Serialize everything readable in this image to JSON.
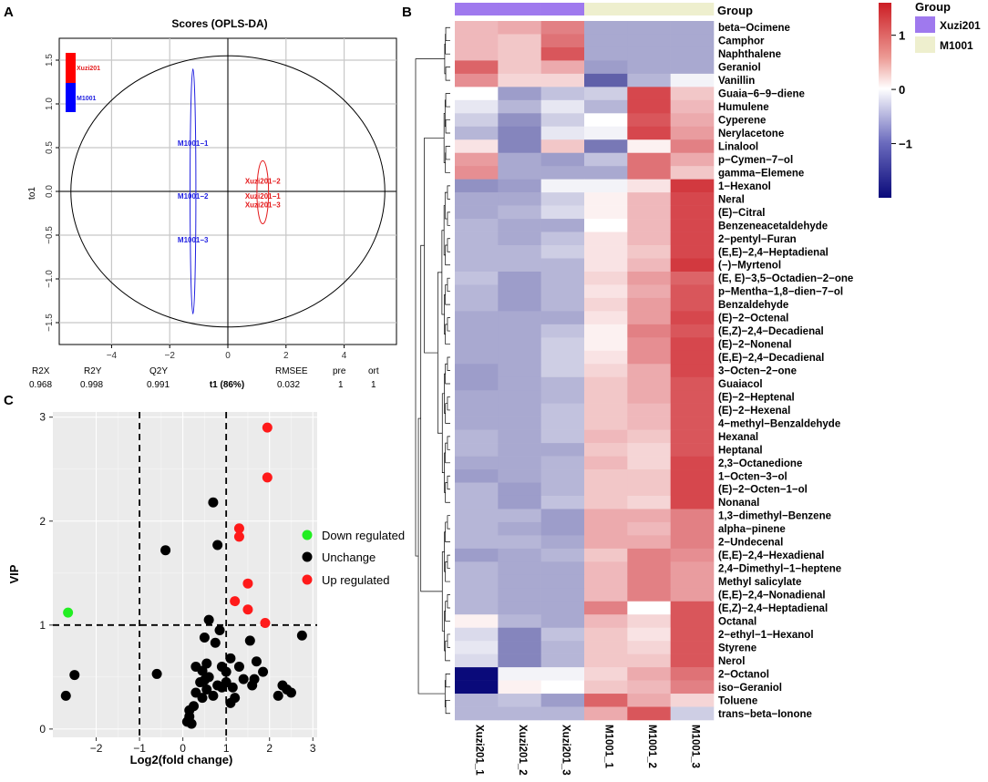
{
  "colors": {
    "xuzi": "#e41a1c",
    "m1001": "#1f1fe0",
    "down": "#22ee22",
    "unch": "#000000",
    "up": "#ff1a1a",
    "hm_low": "#0a0a7a",
    "hm_mid": "#ffffff",
    "hm_high": "#cc1d24",
    "group_xuzi": "#9f79ee",
    "group_m1001": "#eeefce"
  },
  "chart_data": [
    {
      "panel": "A",
      "type": "scatter",
      "title": "Scores (OPLS-DA)",
      "xlabel": "t1 (86%)",
      "ylabel": "to1",
      "xlim": [
        -5.8,
        5.8
      ],
      "ylim": [
        -1.75,
        1.75
      ],
      "xticks": [
        -4,
        -2,
        0,
        2,
        4
      ],
      "yticks": [
        -1.5,
        -1.0,
        -0.5,
        0.0,
        0.5,
        1.0,
        1.5
      ],
      "xtick_labels": [
        "−4",
        "−2",
        "0",
        "2",
        "4"
      ],
      "ytick_labels": [
        "−1.5",
        "−1.0",
        "−0.5",
        "0.0",
        "0.5",
        "1.0",
        "1.5"
      ],
      "points": [
        {
          "label": "M1001−1",
          "group": "M1001",
          "x": -1.2,
          "y": 0.55
        },
        {
          "label": "M1001−2",
          "group": "M1001",
          "x": -1.2,
          "y": -0.05
        },
        {
          "label": "M1001−3",
          "group": "M1001",
          "x": -1.2,
          "y": -0.55
        },
        {
          "label": "Xuzi201−2",
          "group": "Xuzi201",
          "x": 1.2,
          "y": 0.12
        },
        {
          "label": "Xuzi201−1",
          "group": "Xuzi201",
          "x": 1.2,
          "y": -0.05
        },
        {
          "label": "Xuzi201−3",
          "group": "Xuzi201",
          "x": 1.2,
          "y": -0.15
        }
      ],
      "ellipses": [
        {
          "group": "M1001",
          "cx": -1.2,
          "cy": 0.0,
          "rx": 0.1,
          "ry": 1.4
        },
        {
          "group": "Xuzi201",
          "cx": 1.2,
          "cy": -0.01,
          "rx": 0.2,
          "ry": 0.36
        },
        {
          "group": "all",
          "cx": 0.0,
          "cy": 0.0,
          "rx": 5.4,
          "ry": 1.55
        }
      ],
      "legend": [
        "Xuzi201",
        "M1001"
      ],
      "stats": {
        "headers": [
          "R2X",
          "R2Y",
          "Q2Y",
          "RMSEE",
          "pre",
          "ort"
        ],
        "values": [
          "0.968",
          "0.998",
          "0.991",
          "0.032",
          "1",
          "1"
        ]
      }
    },
    {
      "panel": "C",
      "type": "scatter",
      "xlabel": "Log2(fold change)",
      "ylabel": "VIP",
      "xlim": [
        -3,
        3.1
      ],
      "ylim": [
        -0.08,
        3.05
      ],
      "xticks": [
        -2,
        -1,
        0,
        1,
        2,
        3
      ],
      "yticks": [
        0,
        1,
        2,
        3
      ],
      "xtick_labels": [
        "−2",
        "−1",
        "0",
        "1",
        "2",
        "3"
      ],
      "ytick_labels": [
        "0",
        "1",
        "2",
        "3"
      ],
      "thresholds": {
        "x": [
          -1,
          1
        ],
        "y": [
          1
        ]
      },
      "legend": [
        "Down regulated",
        "Unchange",
        "Up regulated"
      ],
      "series": [
        {
          "name": "Down regulated",
          "points": [
            [
              -2.65,
              1.12
            ]
          ]
        },
        {
          "name": "Up regulated",
          "points": [
            [
              1.95,
              2.9
            ],
            [
              1.95,
              2.42
            ],
            [
              1.3,
              1.93
            ],
            [
              1.3,
              1.85
            ],
            [
              1.5,
              1.4
            ],
            [
              1.2,
              1.23
            ],
            [
              1.5,
              1.15
            ],
            [
              1.9,
              1.02
            ]
          ]
        },
        {
          "name": "Unchange",
          "points": [
            [
              -2.7,
              0.32
            ],
            [
              -2.5,
              0.52
            ],
            [
              -0.4,
              1.72
            ],
            [
              -0.6,
              0.53
            ],
            [
              0.7,
              2.18
            ],
            [
              0.8,
              1.77
            ],
            [
              0.6,
              1.05
            ],
            [
              0.85,
              0.95
            ],
            [
              0.75,
              0.83
            ],
            [
              0.55,
              0.63
            ],
            [
              0.45,
              0.56
            ],
            [
              0.6,
              0.5
            ],
            [
              0.5,
              0.47
            ],
            [
              0.4,
              0.45
            ],
            [
              0.8,
              0.42
            ],
            [
              0.3,
              0.35
            ],
            [
              0.55,
              0.38
            ],
            [
              0.7,
              0.32
            ],
            [
              0.9,
              0.4
            ],
            [
              1.0,
              0.45
            ],
            [
              0.45,
              0.3
            ],
            [
              0.25,
              0.22
            ],
            [
              0.15,
              0.18
            ],
            [
              0.15,
              0.12
            ],
            [
              0.1,
              0.07
            ],
            [
              0.2,
              0.05
            ],
            [
              0.9,
              0.6
            ],
            [
              1.0,
              0.55
            ],
            [
              1.1,
              0.68
            ],
            [
              1.3,
              0.6
            ],
            [
              1.4,
              0.48
            ],
            [
              1.15,
              0.4
            ],
            [
              1.55,
              0.85
            ],
            [
              1.7,
              0.65
            ],
            [
              1.65,
              0.48
            ],
            [
              1.85,
              0.55
            ],
            [
              1.1,
              0.25
            ],
            [
              1.2,
              0.3
            ],
            [
              1.6,
              0.42
            ],
            [
              2.3,
              0.42
            ],
            [
              2.4,
              0.38
            ],
            [
              2.5,
              0.35
            ],
            [
              2.2,
              0.32
            ],
            [
              2.75,
              0.9
            ],
            [
              0.5,
              0.88
            ],
            [
              0.3,
              0.6
            ]
          ]
        }
      ]
    },
    {
      "panel": "B",
      "type": "heatmap",
      "group_label": "Group",
      "columns": [
        "Xuzi201_1",
        "Xuzi201_2",
        "Xuzi201_3",
        "M1001_1",
        "M1001_2",
        "M1001_3"
      ],
      "column_groups": [
        "Xuzi201",
        "Xuzi201",
        "Xuzi201",
        "M1001",
        "M1001",
        "M1001"
      ],
      "rows": [
        "beta−Ocimene",
        "Camphor",
        "Naphthalene",
        "Geraniol",
        "Vanillin",
        "Guaia−6−9−diene",
        "Humulene",
        "Cyperene",
        "Nerylacetone",
        "Linalool",
        "p−Cymen−7−ol",
        "gamma−Elemene",
        "1−Hexanol",
        "Neral",
        "(E)−Citral",
        "Benzeneacetaldehyde",
        "2−pentyl−Furan",
        "(E,E)−2,4−Heptadienal",
        "(−)−Myrtenol",
        "(E, E)−3,5−Octadien−2−one",
        "p−Mentha−1,8−dien−7−ol",
        "Benzaldehyde",
        "(E)−2−Octenal",
        "(E,Z)−2,4−Decadienal",
        "(E)−2−Nonenal",
        "(E,E)−2,4−Decadienal",
        "3−Octen−2−one",
        "Guaiacol",
        "(E)−2−Heptenal",
        "(E)−2−Hexenal",
        "4−methyl−Benzaldehyde",
        "Hexanal",
        "Heptanal",
        "2,3−Octanedione",
        "1−Octen−3−ol",
        "(E)−2−Octen−1−ol",
        "Nonanal",
        "1,3−dimethyl−Benzene",
        "alpha−pinene",
        "2−Undecenal",
        "(E,E)−2,4−Hexadienal",
        "2,4−Dimethyl−1−heptene",
        "Methyl salicylate",
        "(E,E)−2,4−Nonadienal",
        "(E,Z)−2,4−Heptadienal",
        "Octanal",
        "2−ethyl−1−Hexanol",
        "Styrene",
        "Nerol",
        "2−Octanol",
        "iso−Geraniol",
        "Toluene",
        "trans−beta−Ionone"
      ],
      "values": [
        [
          0.5,
          0.6,
          0.9,
          -0.7,
          -0.7,
          -0.7
        ],
        [
          0.5,
          0.4,
          1.0,
          -0.7,
          -0.7,
          -0.7
        ],
        [
          0.5,
          0.4,
          1.2,
          -0.7,
          -0.7,
          -0.7
        ],
        [
          1.1,
          0.4,
          0.6,
          -0.8,
          -0.7,
          -0.7
        ],
        [
          0.8,
          0.3,
          0.3,
          -1.3,
          -0.6,
          -0.1
        ],
        [
          0.0,
          -0.8,
          -0.5,
          -0.4,
          1.3,
          0.4
        ],
        [
          -0.2,
          -0.6,
          -0.2,
          -0.6,
          1.3,
          0.5
        ],
        [
          -0.4,
          -0.9,
          -0.4,
          0.0,
          1.2,
          0.6
        ],
        [
          -0.6,
          -1.0,
          -0.2,
          -0.1,
          1.3,
          0.7
        ],
        [
          0.2,
          -1.0,
          0.4,
          -1.1,
          0.1,
          0.9
        ],
        [
          0.7,
          -0.7,
          -0.8,
          -0.5,
          1.0,
          0.6
        ],
        [
          0.8,
          -0.7,
          -0.7,
          -0.7,
          1.0,
          0.4
        ],
        [
          -0.9,
          -0.8,
          -0.1,
          -0.1,
          0.2,
          1.4
        ],
        [
          -0.7,
          -0.7,
          -0.4,
          0.1,
          0.5,
          1.3
        ],
        [
          -0.7,
          -0.6,
          -0.3,
          0.1,
          0.5,
          1.3
        ],
        [
          -0.6,
          -0.7,
          -0.7,
          0.0,
          0.5,
          1.3
        ],
        [
          -0.6,
          -0.7,
          -0.5,
          0.2,
          0.5,
          1.3
        ],
        [
          -0.6,
          -0.6,
          -0.4,
          0.2,
          0.4,
          1.3
        ],
        [
          -0.6,
          -0.6,
          -0.6,
          0.2,
          0.5,
          1.4
        ],
        [
          -0.5,
          -0.8,
          -0.6,
          0.3,
          0.7,
          1.1
        ],
        [
          -0.6,
          -0.8,
          -0.6,
          0.2,
          0.6,
          1.2
        ],
        [
          -0.6,
          -0.8,
          -0.6,
          0.3,
          0.7,
          1.2
        ],
        [
          -0.7,
          -0.7,
          -0.7,
          0.2,
          0.7,
          1.3
        ],
        [
          -0.7,
          -0.7,
          -0.5,
          0.1,
          0.9,
          1.2
        ],
        [
          -0.7,
          -0.7,
          -0.4,
          0.1,
          0.8,
          1.3
        ],
        [
          -0.7,
          -0.7,
          -0.4,
          0.2,
          0.8,
          1.3
        ],
        [
          -0.8,
          -0.7,
          -0.4,
          0.3,
          0.6,
          1.3
        ],
        [
          -0.8,
          -0.7,
          -0.6,
          0.4,
          0.6,
          1.2
        ],
        [
          -0.7,
          -0.7,
          -0.6,
          0.4,
          0.6,
          1.2
        ],
        [
          -0.7,
          -0.7,
          -0.5,
          0.4,
          0.5,
          1.2
        ],
        [
          -0.7,
          -0.7,
          -0.5,
          0.4,
          0.5,
          1.2
        ],
        [
          -0.6,
          -0.7,
          -0.5,
          0.5,
          0.4,
          1.2
        ],
        [
          -0.6,
          -0.7,
          -0.7,
          0.4,
          0.3,
          1.2
        ],
        [
          -0.7,
          -0.7,
          -0.6,
          0.5,
          0.3,
          1.3
        ],
        [
          -0.8,
          -0.7,
          -0.6,
          0.4,
          0.4,
          1.3
        ],
        [
          -0.6,
          -0.8,
          -0.6,
          0.4,
          0.4,
          1.3
        ],
        [
          -0.6,
          -0.8,
          -0.5,
          0.4,
          0.3,
          1.3
        ],
        [
          -0.6,
          -0.6,
          -0.8,
          0.6,
          0.6,
          0.9
        ],
        [
          -0.6,
          -0.7,
          -0.8,
          0.6,
          0.5,
          0.9
        ],
        [
          -0.6,
          -0.6,
          -0.7,
          0.6,
          0.6,
          0.9
        ],
        [
          -0.8,
          -0.7,
          -0.6,
          0.4,
          0.9,
          0.8
        ],
        [
          -0.6,
          -0.7,
          -0.7,
          0.5,
          0.9,
          0.7
        ],
        [
          -0.6,
          -0.7,
          -0.7,
          0.5,
          0.9,
          0.7
        ],
        [
          -0.6,
          -0.7,
          -0.7,
          0.5,
          0.9,
          0.7
        ],
        [
          -0.6,
          -0.7,
          -0.7,
          0.9,
          0.0,
          1.2
        ],
        [
          0.1,
          -0.6,
          -0.7,
          0.5,
          0.3,
          1.2
        ],
        [
          -0.3,
          -1.0,
          -0.5,
          0.4,
          0.2,
          1.2
        ],
        [
          -0.2,
          -1.0,
          -0.6,
          0.4,
          0.3,
          1.2
        ],
        [
          -0.3,
          -1.0,
          -0.6,
          0.4,
          0.4,
          1.2
        ],
        [
          -2.0,
          -0.1,
          -0.1,
          0.3,
          0.6,
          1.0
        ],
        [
          -2.0,
          0.1,
          0.0,
          0.4,
          0.5,
          0.9
        ],
        [
          -0.6,
          -0.5,
          -0.8,
          1.1,
          0.6,
          0.3
        ],
        [
          -0.6,
          -0.6,
          -0.6,
          0.6,
          1.2,
          -0.4
        ]
      ],
      "colorbar": {
        "ticks": [
          1,
          0,
          -1
        ],
        "tick_labels": [
          "1",
          "0",
          "−1"
        ],
        "range": [
          -2,
          1.6
        ]
      },
      "legend": [
        "Xuzi201",
        "M1001"
      ]
    }
  ]
}
